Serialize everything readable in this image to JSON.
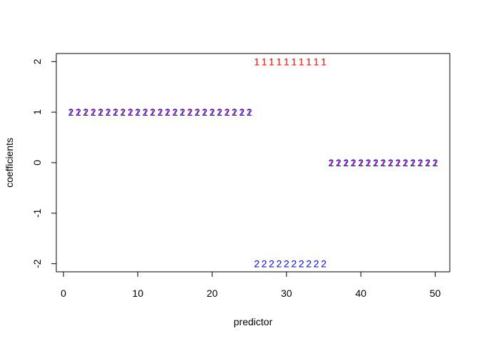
{
  "chart_data": {
    "type": "scatter",
    "title": "",
    "xlabel": "predictor",
    "ylabel": "coefficients",
    "xlim": [
      -0.96,
      51.96
    ],
    "ylim": [
      -2.16,
      2.16
    ],
    "xticks": [
      0,
      10,
      20,
      30,
      40,
      50
    ],
    "xtick_labels": [
      "0",
      "10",
      "20",
      "30",
      "40",
      "50"
    ],
    "yticks": [
      -2,
      -1,
      0,
      1,
      2
    ],
    "ytick_labels": [
      "-2",
      "-1",
      "0",
      "1",
      "2"
    ],
    "grid": false,
    "legend": "none",
    "x": [
      1,
      2,
      3,
      4,
      5,
      6,
      7,
      8,
      9,
      10,
      11,
      12,
      13,
      14,
      15,
      16,
      17,
      18,
      19,
      20,
      21,
      22,
      23,
      24,
      25,
      26,
      27,
      28,
      29,
      30,
      31,
      32,
      33,
      34,
      35,
      36,
      37,
      38,
      39,
      40,
      41,
      42,
      43,
      44,
      45,
      46,
      47,
      48,
      49,
      50
    ],
    "series": [
      {
        "symbol": "1",
        "color": "#ff0000",
        "values": [
          1,
          1,
          1,
          1,
          1,
          1,
          1,
          1,
          1,
          1,
          1,
          1,
          1,
          1,
          1,
          1,
          1,
          1,
          1,
          1,
          1,
          1,
          1,
          1,
          1,
          2,
          2,
          2,
          2,
          2,
          2,
          2,
          2,
          2,
          2,
          0,
          0,
          0,
          0,
          0,
          0,
          0,
          0,
          0,
          0,
          0,
          0,
          0,
          0,
          0
        ]
      },
      {
        "symbol": "2",
        "color": "#0000ff",
        "values": [
          1,
          1,
          1,
          1,
          1,
          1,
          1,
          1,
          1,
          1,
          1,
          1,
          1,
          1,
          1,
          1,
          1,
          1,
          1,
          1,
          1,
          1,
          1,
          1,
          1,
          -2,
          -2,
          -2,
          -2,
          -2,
          -2,
          -2,
          -2,
          -2,
          -2,
          0,
          0,
          0,
          0,
          0,
          0,
          0,
          0,
          0,
          0,
          0,
          0,
          0,
          0,
          0
        ]
      }
    ]
  }
}
